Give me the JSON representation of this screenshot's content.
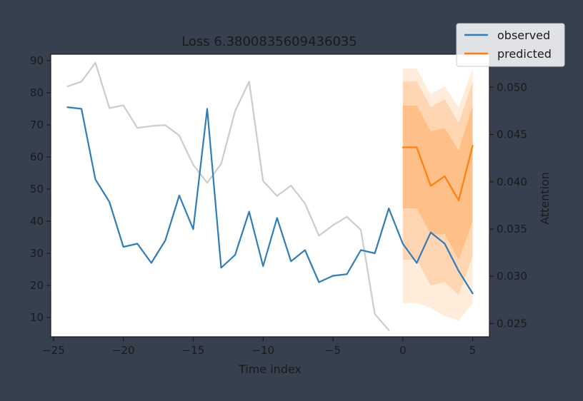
{
  "chart_data": {
    "type": "line",
    "title": "Loss 6.3800835609436035",
    "xlabel": "Time index",
    "ylabel": "",
    "y2label": "Attention",
    "xlim": [
      -25.2,
      6.2
    ],
    "ylim": [
      4,
      92
    ],
    "y2lim": [
      0.0236,
      0.0535
    ],
    "xticks": [
      -25,
      -20,
      -15,
      -10,
      -5,
      0,
      5
    ],
    "yticks": [
      10,
      20,
      30,
      40,
      50,
      60,
      70,
      80,
      90
    ],
    "y2ticks": [
      0.025,
      0.03,
      0.035,
      0.04,
      0.045,
      0.05
    ],
    "y2tick_labels": [
      "0.025",
      "0.030",
      "0.035",
      "0.040",
      "0.045",
      "0.050"
    ],
    "legend": {
      "position": "top-right",
      "entries": [
        "observed",
        "predicted"
      ]
    },
    "colors": {
      "observed": "#2f7dbb",
      "predicted": "#ff7f0e",
      "attention": "#cccccc",
      "band": "#ff7f0e",
      "figure_bg": "#36404f",
      "axes_bg": "#ffffff"
    },
    "series": [
      {
        "name": "observed",
        "axis": "left",
        "x": [
          -24,
          -23,
          -22,
          -21,
          -20,
          -19,
          -18,
          -17,
          -16,
          -15,
          -14,
          -13,
          -12,
          -11,
          -10,
          -9,
          -8,
          -7,
          -6,
          -5,
          -4,
          -3,
          -2,
          -1,
          0,
          1,
          2,
          3,
          4,
          5
        ],
        "y": [
          75.5,
          75,
          53,
          46,
          32,
          33,
          27,
          34,
          48,
          37.5,
          75,
          25.5,
          29.5,
          43,
          26,
          41,
          27.5,
          31,
          21,
          23,
          23.5,
          31,
          30,
          44,
          33,
          27,
          36.5,
          33,
          24.5,
          17.5
        ]
      },
      {
        "name": "predicted",
        "axis": "left",
        "x": [
          0,
          1,
          2,
          3,
          4,
          5
        ],
        "y": [
          63,
          63,
          51,
          54,
          46.5,
          63.5
        ]
      },
      {
        "name": "attention",
        "axis": "right",
        "x": [
          -24,
          -23,
          -22,
          -21,
          -20,
          -19,
          -18,
          -17,
          -16,
          -15,
          -14,
          -13,
          -12,
          -11,
          -10,
          -9,
          -8,
          -7,
          -6,
          -5,
          -4,
          -3,
          -2,
          -1
        ],
        "y": [
          0.0501,
          0.0506,
          0.0526,
          0.0478,
          0.0481,
          0.0457,
          0.0459,
          0.046,
          0.0449,
          0.0418,
          0.0399,
          0.0419,
          0.0475,
          0.0506,
          0.0401,
          0.0385,
          0.0396,
          0.0377,
          0.0343,
          0.0354,
          0.0363,
          0.0349,
          0.026,
          0.0243
        ]
      }
    ],
    "bands": [
      {
        "x": [
          0,
          1,
          2,
          3,
          4,
          5
        ],
        "lower": [
          14.5,
          14.5,
          13,
          10.5,
          9,
          14.5
        ],
        "upper": [
          87.5,
          87.5,
          79.5,
          82,
          75.5,
          87.5
        ],
        "opacity": 0.15
      },
      {
        "x": [
          0,
          1,
          2,
          3,
          4,
          5
        ],
        "lower": [
          28,
          28,
          20,
          21,
          17,
          29
        ],
        "upper": [
          83.5,
          83.5,
          75.5,
          78,
          70.5,
          83.5
        ],
        "opacity": 0.2
      },
      {
        "x": [
          0,
          1,
          2,
          3,
          4,
          5
        ],
        "lower": [
          44,
          44,
          36,
          36,
          28,
          40
        ],
        "upper": [
          76,
          76,
          68,
          69,
          62,
          76
        ],
        "opacity": 0.25
      }
    ]
  }
}
